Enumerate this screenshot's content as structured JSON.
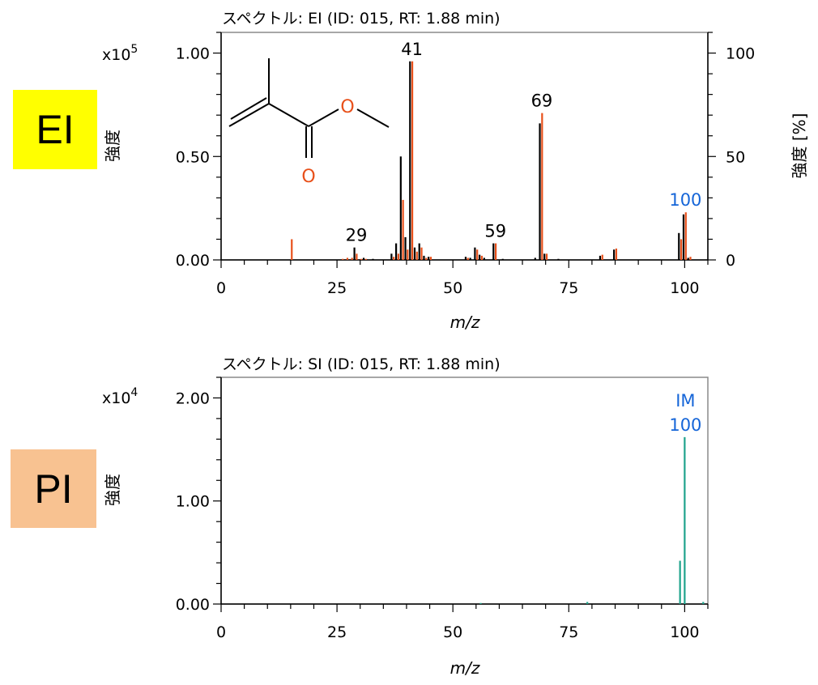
{
  "badges": {
    "ei": {
      "text": "EI",
      "color": "#ffff00"
    },
    "pi": {
      "text": "PI",
      "color": "#f8c291"
    }
  },
  "structure": {
    "name": "methyl-methacrylate",
    "oxygen_label": "O",
    "oxygen_color": "#e8501a"
  },
  "colors": {
    "measured": "#000000",
    "reference": "#e8501a",
    "si": "#1fa38c",
    "highlight_label": "#1565d8"
  },
  "chart_data": [
    {
      "type": "bar",
      "title": "スペクトル: EI (ID: 015, RT: 1.88 min)",
      "xlabel": "m/z",
      "ylabel": "強度",
      "ylabel_right": "強度 [%]",
      "y_multiplier": "x10",
      "y_exponent": "5",
      "xlim": [
        0,
        105
      ],
      "ylim": [
        0,
        1.1
      ],
      "y2lim": [
        0,
        110
      ],
      "xticks": [
        "0",
        "25",
        "50",
        "75",
        "100"
      ],
      "yticks": [
        "0.00",
        "0.50",
        "1.00"
      ],
      "y2ticks": [
        "0",
        "50",
        "100"
      ],
      "series": [
        {
          "x": [
            29,
            31,
            33,
            37,
            38,
            39,
            40,
            41,
            42,
            43,
            44,
            45,
            53,
            54,
            55,
            56,
            57,
            59,
            61,
            68,
            69,
            70,
            73,
            82,
            85,
            99,
            100,
            101
          ],
          "values": [
            0.06,
            0.01,
            0.005,
            0.03,
            0.08,
            0.5,
            0.11,
            0.96,
            0.06,
            0.08,
            0.02,
            0.015,
            0.015,
            0.01,
            0.06,
            0.025,
            0.01,
            0.08,
            0.005,
            0.01,
            0.66,
            0.03,
            0.005,
            0.02,
            0.05,
            0.13,
            0.22,
            0.01
          ]
        },
        {
          "x": [
            15,
            26,
            27,
            28,
            29,
            30,
            31,
            37,
            38,
            39,
            40,
            41,
            42,
            43,
            44,
            45,
            53,
            55,
            56,
            59,
            69,
            70,
            82,
            85,
            99,
            100,
            101
          ],
          "values": [
            0.1,
            0.005,
            0.01,
            0.01,
            0.03,
            0.005,
            0.005,
            0.015,
            0.03,
            0.29,
            0.05,
            0.96,
            0.04,
            0.06,
            0.01,
            0.015,
            0.01,
            0.05,
            0.02,
            0.08,
            0.71,
            0.03,
            0.025,
            0.055,
            0.1,
            0.23,
            0.015
          ]
        }
      ],
      "peak_labels": [
        {
          "x": 29,
          "text": "29"
        },
        {
          "x": 41,
          "text": "41"
        },
        {
          "x": 59,
          "text": "59"
        },
        {
          "x": 69,
          "text": "69"
        },
        {
          "x": 100,
          "text": "100",
          "highlight": true
        }
      ]
    },
    {
      "type": "bar",
      "title": "スペクトル: SI (ID: 015, RT: 1.88 min)",
      "xlabel": "m/z",
      "ylabel": "強度",
      "y_multiplier": "x10",
      "y_exponent": "4",
      "xlim": [
        0,
        105
      ],
      "ylim": [
        0,
        2.2
      ],
      "xticks": [
        "0",
        "25",
        "50",
        "75",
        "100"
      ],
      "yticks": [
        "0.00",
        "1.00",
        "2.00"
      ],
      "series": [
        {
          "x": [
            56,
            79,
            99,
            100,
            104
          ],
          "values": [
            0.01,
            0.02,
            0.42,
            1.62,
            0.02
          ]
        }
      ],
      "peak_labels": [
        {
          "x": 100,
          "text": "IM",
          "text2": "100",
          "highlight": true
        }
      ]
    }
  ]
}
